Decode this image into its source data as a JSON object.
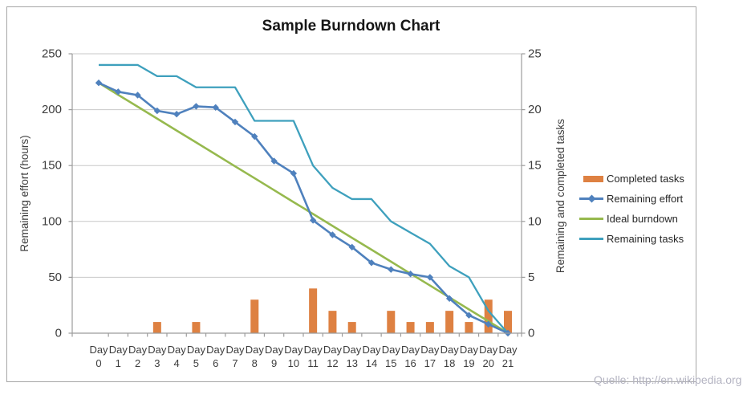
{
  "source_note": "Quelle: http://en.wikipedia.org",
  "chart_data": {
    "type": "combo",
    "title": "Sample Burndown Chart",
    "grid": true,
    "legend_position": "right",
    "categories": [
      "Day 0",
      "Day 1",
      "Day 2",
      "Day 3",
      "Day 4",
      "Day 5",
      "Day 6",
      "Day 7",
      "Day 8",
      "Day 9",
      "Day 10",
      "Day 11",
      "Day 12",
      "Day 13",
      "Day 14",
      "Day 15",
      "Day 16",
      "Day 17",
      "Day 18",
      "Day 19",
      "Day 20",
      "Day 21"
    ],
    "left_axis": {
      "label": "Remaining effort (hours)",
      "min": 0,
      "max": 250,
      "tick_step": 50,
      "ticks": [
        250,
        200,
        150,
        100,
        50,
        0
      ]
    },
    "right_axis": {
      "label": "Remaining and  completed tasks",
      "min": 0,
      "max": 25,
      "tick_step": 5,
      "ticks": [
        25,
        20,
        15,
        10,
        5,
        0
      ]
    },
    "series": [
      {
        "name": "Completed tasks",
        "type": "bar",
        "axis": "right",
        "color": "#DE8142",
        "values": [
          0,
          0,
          0,
          1,
          0,
          1,
          0,
          0,
          3,
          0,
          0,
          4,
          2,
          1,
          0,
          2,
          1,
          1,
          2,
          1,
          3,
          2
        ]
      },
      {
        "name": "Remaining effort",
        "type": "line",
        "marker": "diamond",
        "axis": "left",
        "color": "#4F81BD",
        "values": [
          224,
          216,
          213,
          199,
          196,
          203,
          202,
          189,
          176,
          154,
          143,
          101,
          88,
          77,
          63,
          57,
          53,
          50,
          31,
          16,
          8,
          0
        ]
      },
      {
        "name": "Ideal burndown",
        "type": "line",
        "axis": "left",
        "color": "#96B94E",
        "values": [
          224,
          213.3,
          202.7,
          192,
          181.3,
          170.7,
          160,
          149.3,
          138.7,
          128,
          117.3,
          106.7,
          96,
          85.3,
          74.7,
          64,
          53.3,
          42.7,
          32,
          21.3,
          10.7,
          0
        ]
      },
      {
        "name": "Remaining tasks",
        "type": "line",
        "axis": "right",
        "color": "#3EA0BD",
        "values": [
          24,
          24,
          24,
          23,
          23,
          22,
          22,
          22,
          19,
          19,
          19,
          15,
          13,
          12,
          12,
          10,
          9,
          8,
          6,
          5,
          2,
          0
        ]
      }
    ]
  }
}
